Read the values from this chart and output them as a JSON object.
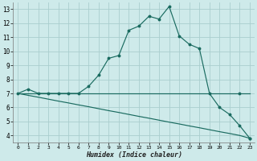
{
  "xlabel": "Humidex (Indice chaleur)",
  "background_color": "#ceeaea",
  "grid_color": "#aacece",
  "line_color": "#1a6b60",
  "xlim": [
    -0.5,
    23.5
  ],
  "ylim": [
    3.5,
    13.5
  ],
  "xticks": [
    0,
    1,
    2,
    3,
    4,
    5,
    6,
    7,
    8,
    9,
    10,
    11,
    12,
    13,
    14,
    15,
    16,
    17,
    18,
    19,
    20,
    21,
    22,
    23
  ],
  "yticks": [
    4,
    5,
    6,
    7,
    8,
    9,
    10,
    11,
    12,
    13
  ],
  "series1": [
    7.0,
    7.3,
    7.0,
    7.0,
    7.0,
    7.0,
    7.0,
    7.5,
    8.3,
    9.5,
    9.7,
    11.5,
    11.8,
    12.5,
    12.3,
    13.2,
    11.1,
    10.5,
    10.2,
    7.0,
    6.0,
    5.5,
    4.7,
    3.8
  ],
  "series2": [
    7.0,
    7.0,
    7.0,
    7.0,
    7.0,
    7.0,
    7.0,
    7.0,
    7.0,
    7.0,
    7.0,
    7.0,
    7.0,
    7.0,
    7.0,
    7.0,
    7.0,
    7.0,
    7.0,
    7.0,
    7.0,
    7.0,
    7.0,
    7.0
  ],
  "series3": [
    7.0,
    6.86,
    6.73,
    6.59,
    6.45,
    6.32,
    6.18,
    6.05,
    5.91,
    5.77,
    5.64,
    5.5,
    5.36,
    5.23,
    5.09,
    4.95,
    4.82,
    4.68,
    4.55,
    4.41,
    4.27,
    4.14,
    4.0,
    3.8
  ]
}
